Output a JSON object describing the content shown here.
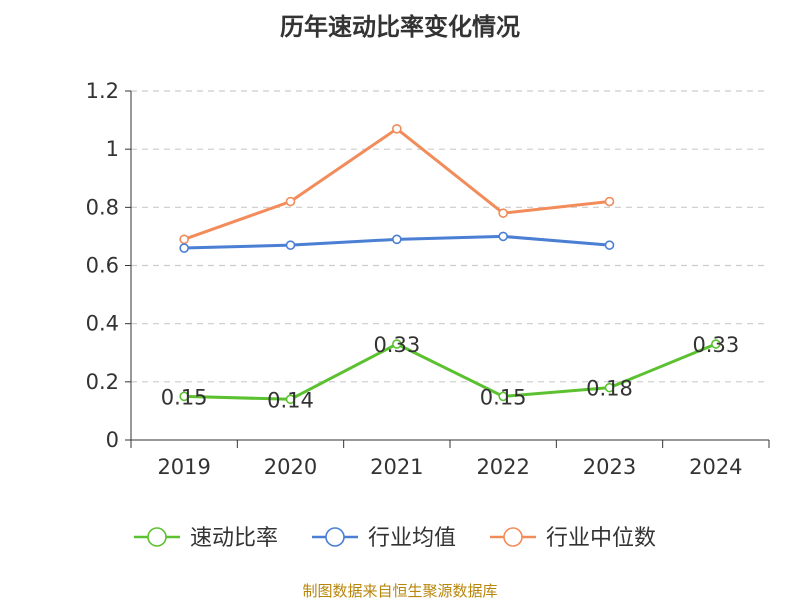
{
  "chart_data": {
    "type": "line",
    "title": "历年速动比率变化情况",
    "categories": [
      "2019",
      "2020",
      "2021",
      "2022",
      "2023",
      "2024"
    ],
    "ylim": [
      0,
      1.2
    ],
    "yticks": [
      0,
      0.2,
      0.4,
      0.6,
      0.8,
      1,
      1.2
    ],
    "ytick_labels": [
      "0",
      "0.2",
      "0.4",
      "0.6",
      "0.8",
      "1",
      "1.2"
    ],
    "grid": true,
    "legend_position": "bottom",
    "series": [
      {
        "name": "速动比率",
        "color": "#5cc130",
        "values": [
          0.15,
          0.14,
          0.33,
          0.15,
          0.18,
          0.33
        ],
        "data_labels": [
          "0.15",
          "0.14",
          "0.33",
          "0.15",
          "0.18",
          "0.33"
        ]
      },
      {
        "name": "行业均值",
        "color": "#4a7fd4",
        "values": [
          0.66,
          0.67,
          0.69,
          0.7,
          0.67,
          null
        ]
      },
      {
        "name": "行业中位数",
        "color": "#f28c5a",
        "values": [
          0.69,
          0.82,
          1.07,
          0.78,
          0.82,
          null
        ]
      }
    ],
    "source": "制图数据来自恒生聚源数据库"
  }
}
